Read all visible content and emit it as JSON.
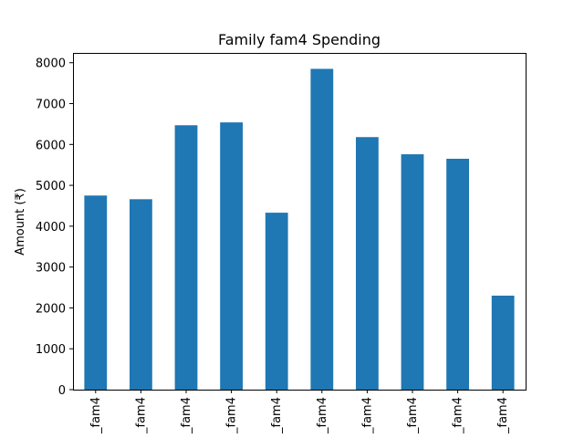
{
  "chart_data": {
    "type": "bar",
    "title": "Family fam4 Spending",
    "xlabel": "",
    "ylabel": "Amount (₹)",
    "categories": [
      "_fam4",
      "_fam4",
      "_fam4",
      "_fam4",
      "_fam4",
      "_fam4",
      "_fam4",
      "_fam4",
      "_fam4",
      "_fam4"
    ],
    "values": [
      4750,
      4660,
      6470,
      6540,
      4330,
      7850,
      6180,
      5760,
      5650,
      2300
    ],
    "ylim": [
      0,
      8240
    ],
    "yticks": [
      0,
      1000,
      2000,
      3000,
      4000,
      5000,
      6000,
      7000,
      8000
    ],
    "grid": false,
    "bar_color": "#1f77b4"
  }
}
